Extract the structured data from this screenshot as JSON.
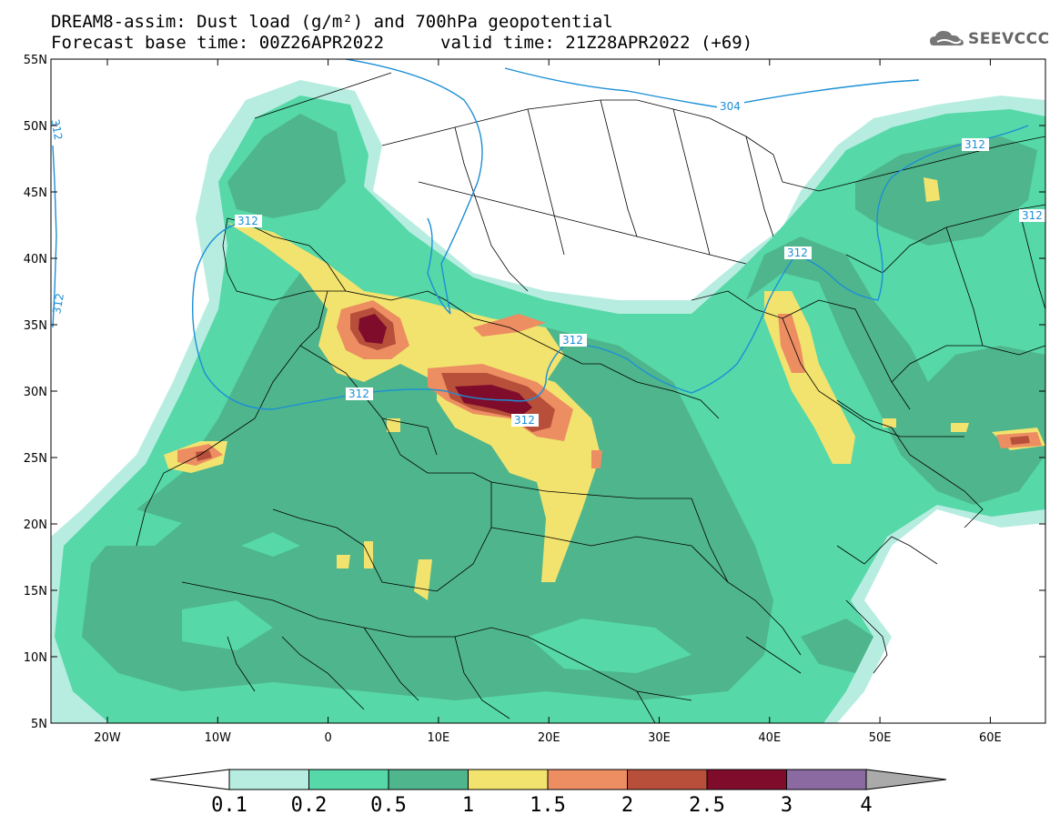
{
  "header": {
    "title_line1": "DREAM8-assim: Dust load (g/m²) and 700hPa geopotential",
    "base_time_label": "Forecast base time: 00Z26APR2022",
    "valid_time_label": "valid time: 21Z28APR2022 (+69)",
    "logo_text": "SEEVCCC"
  },
  "axes": {
    "lat_labels": [
      "55N",
      "50N",
      "45N",
      "40N",
      "35N",
      "30N",
      "25N",
      "20N",
      "15N",
      "10N",
      "5N"
    ],
    "lon_labels": [
      "20W",
      "10W",
      "0",
      "10E",
      "20E",
      "30E",
      "40E",
      "50E",
      "60E"
    ]
  },
  "contours": {
    "labels": [
      "312",
      "312",
      "312",
      "312",
      "312",
      "312",
      "312",
      "312",
      "312",
      "304"
    ]
  },
  "colorbar": {
    "levels": [
      "0.1",
      "0.2",
      "0.5",
      "1",
      "1.5",
      "2",
      "2.5",
      "3",
      "4"
    ],
    "colors": [
      "#b7ede0",
      "#56d8a8",
      "#4fb58c",
      "#f2e36e",
      "#ec8d62",
      "#b74f3a",
      "#800c2c",
      "#8a6aa0"
    ],
    "under_color": "#ffffff",
    "over_color": "#aaaaaa"
  },
  "style": {
    "contour_color": "#1c8fd6",
    "border_color": "#000000"
  }
}
